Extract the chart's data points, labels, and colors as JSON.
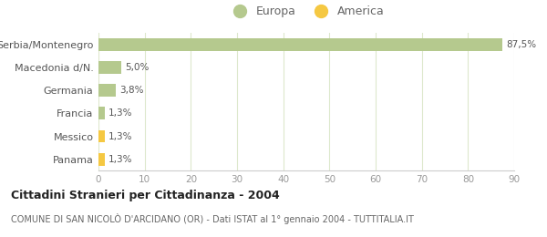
{
  "categories": [
    "Serbia/Montenegro",
    "Macedonia d/N.",
    "Germania",
    "Francia",
    "Messico",
    "Panama"
  ],
  "values": [
    87.5,
    5.0,
    3.8,
    1.3,
    1.3,
    1.3
  ],
  "labels": [
    "87,5%",
    "5,0%",
    "3,8%",
    "1,3%",
    "1,3%",
    "1,3%"
  ],
  "colors": [
    "#b5c98e",
    "#b5c98e",
    "#b5c98e",
    "#b5c98e",
    "#f5c842",
    "#f5c842"
  ],
  "europa_color": "#b5c98e",
  "america_color": "#f5c842",
  "xlim": [
    0,
    90
  ],
  "xticks": [
    0,
    10,
    20,
    30,
    40,
    50,
    60,
    70,
    80,
    90
  ],
  "title": "Cittadini Stranieri per Cittadinanza - 2004",
  "subtitle": "COMUNE DI SAN NICOLÒ D'ARCIDANO (OR) - Dati ISTAT al 1° gennaio 2004 - TUTTITALIA.IT",
  "background_color": "#ffffff",
  "grid_color": "#dde8cc",
  "bar_height": 0.55
}
